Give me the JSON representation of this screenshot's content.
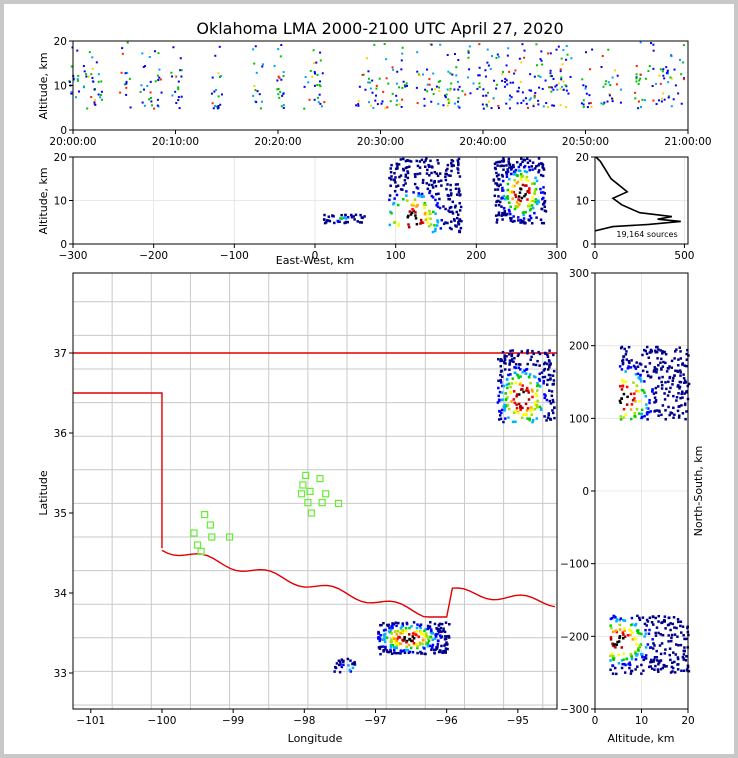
{
  "chart_data": [
    {
      "id": "time_height",
      "type": "heatmap",
      "title": "Oklahoma LMA 2000-2100 UTC April 27, 2020",
      "xlabel": "",
      "ylabel": "Altitude, km",
      "x_ticks": [
        "20:00:00",
        "20:10:00",
        "20:20:00",
        "20:30:00",
        "20:40:00",
        "20:50:00",
        "21:00:00"
      ],
      "xlim": [
        0,
        60
      ],
      "ylim": [
        0,
        20
      ],
      "y_ticks": [
        0,
        10,
        20
      ],
      "activity_columns_minutes": [
        0,
        1.5,
        2.2,
        5,
        7,
        8,
        10,
        14,
        18,
        20,
        23,
        24,
        28,
        29,
        30,
        31,
        32,
        34,
        35,
        36,
        37,
        38,
        39,
        40,
        41,
        42,
        43,
        44,
        45,
        46,
        47,
        48,
        50,
        52,
        53,
        55,
        56,
        57,
        58,
        59
      ]
    },
    {
      "id": "ew_altitude",
      "type": "heatmap",
      "xlabel": "East-West, km",
      "ylabel": "Altitude, km",
      "xlim": [
        -300,
        300
      ],
      "ylim": [
        0,
        20
      ],
      "x_ticks": [
        -300,
        -200,
        -100,
        0,
        100,
        200,
        300
      ],
      "y_ticks": [
        0,
        10,
        20
      ],
      "clusters": [
        {
          "x": [
            90,
            180
          ],
          "z": [
            3,
            20
          ],
          "peak_x": 120,
          "peak_z": 6
        },
        {
          "x": [
            220,
            285
          ],
          "z": [
            5,
            20
          ],
          "peak_x": 255,
          "peak_z": 12
        },
        {
          "x": [
            5,
            60
          ],
          "z": [
            5,
            7
          ],
          "peak_x": 30,
          "peak_z": 6
        }
      ]
    },
    {
      "id": "altitude_histogram",
      "type": "line",
      "xlim": [
        0,
        520
      ],
      "ylim": [
        0,
        20
      ],
      "x_ticks": [
        0,
        500
      ],
      "y_ticks": [
        0,
        10,
        20
      ],
      "annotation": "19,164 sources",
      "profile": [
        [
          0,
          3
        ],
        [
          100,
          4
        ],
        [
          300,
          4.5
        ],
        [
          480,
          5.2
        ],
        [
          350,
          5.7
        ],
        [
          430,
          6.3
        ],
        [
          250,
          7.2
        ],
        [
          150,
          9
        ],
        [
          100,
          10.5
        ],
        [
          180,
          12
        ],
        [
          150,
          13
        ],
        [
          90,
          15
        ],
        [
          60,
          17
        ],
        [
          30,
          19
        ],
        [
          5,
          20
        ]
      ]
    },
    {
      "id": "plan_view",
      "type": "scatter",
      "xlabel": "Longitude",
      "ylabel": "Latitude",
      "xlim": [
        -101.25,
        -94.45
      ],
      "ylim": [
        32.55,
        38.0
      ],
      "x_ticks": [
        -101,
        -100,
        -99,
        -98,
        -97,
        -96,
        -95
      ],
      "y_ticks": [
        33,
        34,
        35,
        36,
        37
      ],
      "stations": [
        [
          -99.4,
          34.98
        ],
        [
          -99.32,
          34.85
        ],
        [
          -99.55,
          34.75
        ],
        [
          -99.3,
          34.7
        ],
        [
          -99.05,
          34.7
        ],
        [
          -99.5,
          34.6
        ],
        [
          -99.45,
          34.52
        ],
        [
          -97.98,
          35.47
        ],
        [
          -97.78,
          35.43
        ],
        [
          -98.02,
          35.35
        ],
        [
          -97.92,
          35.27
        ],
        [
          -98.04,
          35.24
        ],
        [
          -97.7,
          35.24
        ],
        [
          -97.95,
          35.13
        ],
        [
          -97.75,
          35.13
        ],
        [
          -97.52,
          35.12
        ],
        [
          -97.9,
          35.0
        ]
      ],
      "lightning_regions": [
        {
          "lon": [
            -95.3,
            -94.5
          ],
          "lat": [
            36.15,
            37.05
          ],
          "peak_lon": -94.95,
          "peak_lat": 36.45
        },
        {
          "lon": [
            -96.98,
            -95.98
          ],
          "lat": [
            33.25,
            33.65
          ],
          "peak_lon": -96.55,
          "peak_lat": 33.45
        },
        {
          "lon": [
            -97.6,
            -97.3
          ],
          "lat": [
            33.02,
            33.2
          ],
          "peak_lon": -97.4,
          "peak_lat": 33.08
        }
      ]
    },
    {
      "id": "altitude_ns",
      "type": "heatmap",
      "xlabel": "Altitude, km",
      "ylabel": "North-South, km",
      "xlim": [
        0,
        20
      ],
      "ylim": [
        -300,
        300
      ],
      "x_ticks": [
        0,
        10,
        20
      ],
      "y_ticks": [
        -300,
        -200,
        -100,
        0,
        100,
        200,
        300
      ],
      "clusters": [
        {
          "z": [
            5,
            20
          ],
          "y": [
            100,
            200
          ],
          "peak_z": 6,
          "peak_y": 130
        },
        {
          "z": [
            3,
            20
          ],
          "y": [
            -250,
            -170
          ],
          "peak_z": 5,
          "peak_y": -205
        }
      ]
    }
  ]
}
